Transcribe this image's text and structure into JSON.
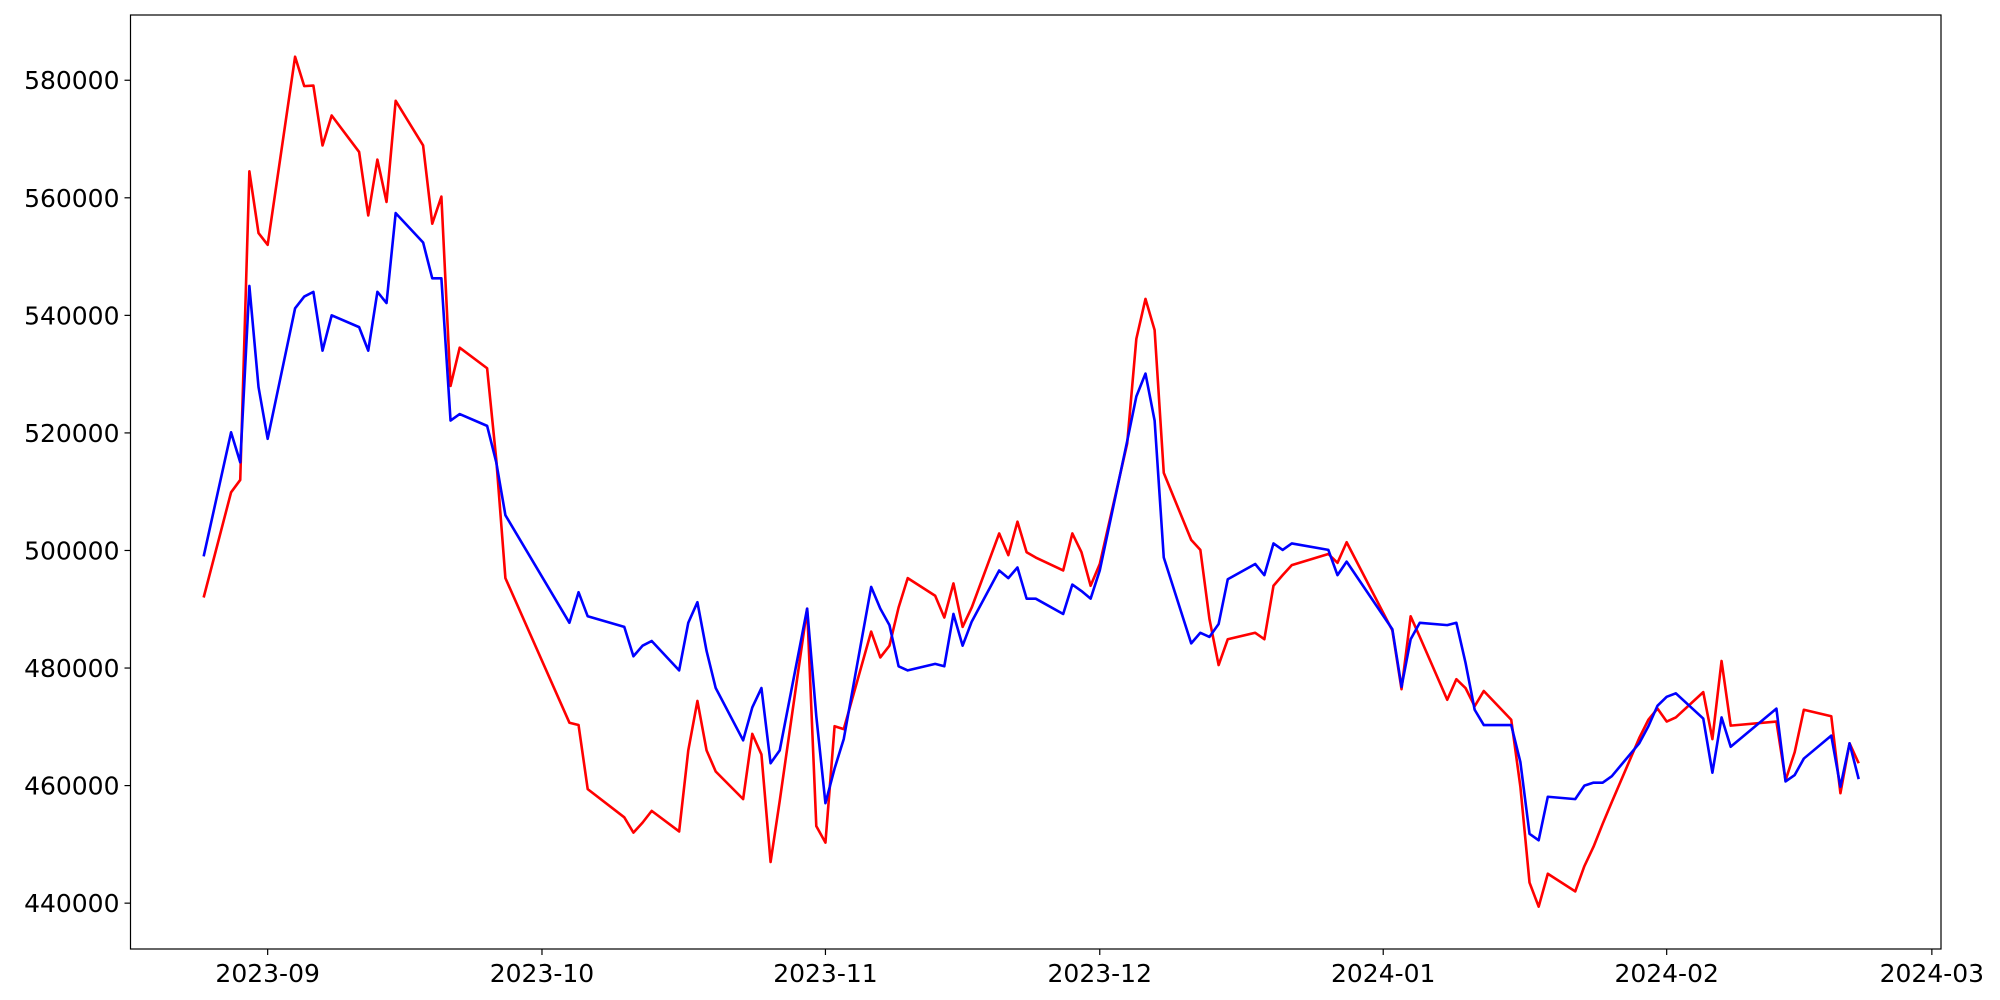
{
  "chart_data": {
    "type": "line",
    "x": [
      "2023-08-25",
      "2023-08-28",
      "2023-08-29",
      "2023-08-30",
      "2023-08-31",
      "2023-09-01",
      "2023-09-04",
      "2023-09-05",
      "2023-09-06",
      "2023-09-07",
      "2023-09-08",
      "2023-09-11",
      "2023-09-12",
      "2023-09-13",
      "2023-09-14",
      "2023-09-15",
      "2023-09-18",
      "2023-09-19",
      "2023-09-20",
      "2023-09-21",
      "2023-09-22",
      "2023-09-25",
      "2023-09-26",
      "2023-09-27",
      "2023-10-04",
      "2023-10-05",
      "2023-10-06",
      "2023-10-10",
      "2023-10-11",
      "2023-10-12",
      "2023-10-13",
      "2023-10-16",
      "2023-10-17",
      "2023-10-18",
      "2023-10-19",
      "2023-10-20",
      "2023-10-23",
      "2023-10-24",
      "2023-10-25",
      "2023-10-26",
      "2023-10-27",
      "2023-10-30",
      "2023-10-31",
      "2023-11-01",
      "2023-11-02",
      "2023-11-03",
      "2023-11-06",
      "2023-11-07",
      "2023-11-08",
      "2023-11-09",
      "2023-11-10",
      "2023-11-13",
      "2023-11-14",
      "2023-11-15",
      "2023-11-16",
      "2023-11-17",
      "2023-11-20",
      "2023-11-21",
      "2023-11-22",
      "2023-11-23",
      "2023-11-24",
      "2023-11-27",
      "2023-11-28",
      "2023-11-29",
      "2023-11-30",
      "2023-12-01",
      "2023-12-04",
      "2023-12-05",
      "2023-12-06",
      "2023-12-07",
      "2023-12-08",
      "2023-12-11",
      "2023-12-12",
      "2023-12-13",
      "2023-12-14",
      "2023-12-15",
      "2023-12-18",
      "2023-12-19",
      "2023-12-20",
      "2023-12-21",
      "2023-12-22",
      "2023-12-26",
      "2023-12-27",
      "2023-12-28",
      "2024-01-02",
      "2024-01-03",
      "2024-01-04",
      "2024-01-05",
      "2024-01-08",
      "2024-01-09",
      "2024-01-10",
      "2024-01-11",
      "2024-01-12",
      "2024-01-15",
      "2024-01-16",
      "2024-01-17",
      "2024-01-18",
      "2024-01-19",
      "2024-01-22",
      "2024-01-23",
      "2024-01-24",
      "2024-01-25",
      "2024-01-26",
      "2024-01-29",
      "2024-01-30",
      "2024-01-31",
      "2024-02-01",
      "2024-02-02",
      "2024-02-05",
      "2024-02-06",
      "2024-02-07",
      "2024-02-08",
      "2024-02-13",
      "2024-02-14",
      "2024-02-15",
      "2024-02-16",
      "2024-02-19",
      "2024-02-20",
      "2024-02-21",
      "2024-02-22"
    ],
    "series": [
      {
        "color": "red",
        "values": [
          492000,
          509900,
          512000,
          564500,
          554000,
          552000,
          584000,
          579000,
          579100,
          568900,
          574000,
          567800,
          557000,
          566500,
          559300,
          576500,
          568900,
          555600,
          560200,
          528000,
          534500,
          531000,
          515500,
          495300,
          470700,
          470300,
          459400,
          454600,
          452000,
          453700,
          455700,
          452200,
          466000,
          474400,
          466000,
          462400,
          457700,
          468800,
          465300,
          447000,
          457400,
          490100,
          453100,
          450300,
          470100,
          469600,
          486200,
          481800,
          483800,
          490300,
          495300,
          492300,
          488600,
          494400,
          487000,
          490300,
          502900,
          499200,
          504900,
          499700,
          498800,
          496600,
          502900,
          499700,
          494000,
          497700,
          518200,
          536000,
          542800,
          537500,
          513200,
          501800,
          500100,
          488300,
          480500,
          484900,
          486000,
          484900,
          494000,
          495800,
          497500,
          499400,
          497900,
          501400,
          486400,
          476400,
          488800,
          485300,
          474600,
          478100,
          476600,
          473500,
          476100,
          471200,
          459800,
          443500,
          439400,
          445000,
          442000,
          446300,
          449600,
          453500,
          457200,
          468100,
          471200,
          473100,
          470900,
          471600,
          475900,
          467900,
          481200,
          470200,
          470900,
          460900,
          465700,
          472900,
          471800,
          458700,
          467200,
          463800
        ]
      },
      {
        "color": "blue",
        "values": [
          499000,
          520100,
          515000,
          545000,
          527800,
          519000,
          541200,
          543200,
          544000,
          534000,
          540000,
          538000,
          534000,
          544000,
          542100,
          557400,
          552400,
          546300,
          546300,
          522100,
          523200,
          521200,
          515000,
          506000,
          487700,
          492900,
          488800,
          487000,
          482000,
          483800,
          484600,
          479600,
          487700,
          491200,
          482900,
          476600,
          467700,
          473300,
          476600,
          463800,
          466000,
          490100,
          471800,
          457000,
          462900,
          467900,
          493800,
          490100,
          487300,
          480300,
          479600,
          480700,
          480300,
          489200,
          483800,
          487900,
          496600,
          495300,
          497100,
          491800,
          491800,
          489200,
          494200,
          493100,
          491800,
          496600,
          518600,
          526200,
          530100,
          522100,
          498800,
          484200,
          486000,
          485300,
          487500,
          495100,
          497700,
          495800,
          501200,
          500100,
          501200,
          500100,
          495800,
          498100,
          486600,
          476800,
          484900,
          487700,
          487300,
          487700,
          480900,
          472900,
          470300,
          470300,
          464000,
          451800,
          450700,
          458100,
          457700,
          460000,
          460500,
          460500,
          461600,
          467200,
          470100,
          473600,
          475100,
          475700,
          471400,
          462200,
          471600,
          466600,
          473100,
          460700,
          461800,
          464600,
          468500,
          459800,
          467200,
          461100
        ]
      }
    ],
    "xlim": [
      "2023-08-17",
      "2024-03-02"
    ],
    "xticks": [
      {
        "value": "2023-09-01",
        "label": "2023-09"
      },
      {
        "value": "2023-10-01",
        "label": "2023-10"
      },
      {
        "value": "2023-11-01",
        "label": "2023-11"
      },
      {
        "value": "2023-12-01",
        "label": "2023-12"
      },
      {
        "value": "2024-01-01",
        "label": "2024-01"
      },
      {
        "value": "2024-02-01",
        "label": "2024-02"
      },
      {
        "value": "2024-03-01",
        "label": "2024-03"
      }
    ],
    "ylim": [
      432200,
      591100
    ],
    "yticks": [
      440000,
      460000,
      480000,
      500000,
      520000,
      540000,
      560000,
      580000
    ],
    "grid": false
  }
}
